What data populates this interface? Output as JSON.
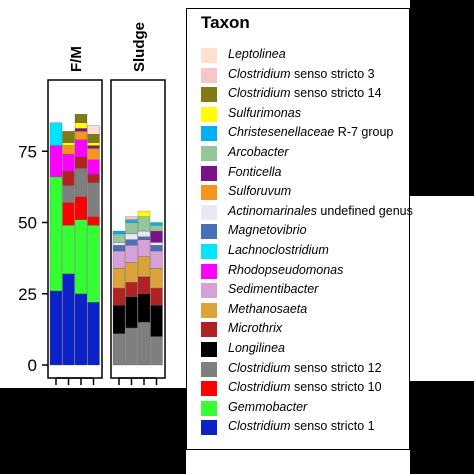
{
  "chart_data": {
    "type": "bar",
    "stacked": true,
    "panels": [
      {
        "title": "F/M",
        "n_bars": 4
      },
      {
        "title": "Sludge",
        "n_bars": 4
      }
    ],
    "ylim": [
      0,
      100
    ],
    "yticks": [
      "0",
      "25",
      "50",
      "75"
    ],
    "ytick_values": [
      0,
      25,
      50,
      75
    ],
    "xlabel": "",
    "ylabel": "",
    "legend_title": "Taxon",
    "legend_position": "right",
    "grid": false,
    "series": [
      {
        "name_italic": "Leptolinea",
        "name_rest": "",
        "color": "#fde0cf",
        "values": [
          0,
          0,
          0,
          3,
          0,
          0,
          0,
          0
        ]
      },
      {
        "name_italic": "Clostridium",
        "name_rest": " senso stricto 3",
        "color": "#f7c6c6",
        "values": [
          0,
          0,
          0,
          0,
          0,
          1,
          0,
          0
        ]
      },
      {
        "name_italic": "Clostridium",
        "name_rest": " senso stricto 14",
        "color": "#7f7a14",
        "values": [
          0,
          4,
          3,
          3,
          0,
          0,
          0,
          0
        ]
      },
      {
        "name_italic": "Sulfurimonas",
        "name_rest": "",
        "color": "#ffff00",
        "values": [
          0,
          1,
          2,
          1,
          0,
          0,
          2,
          0
        ]
      },
      {
        "name_italic": "Christesenellaceae",
        "name_rest": " R-7 group",
        "color": "#00b0f0",
        "values": [
          0,
          0,
          0,
          0,
          1,
          1,
          0,
          1
        ]
      },
      {
        "name_italic": "Arcobacter",
        "name_rest": "",
        "color": "#93c69b",
        "values": [
          0,
          0,
          0,
          0,
          3,
          4,
          5,
          2
        ]
      },
      {
        "name_italic": "Fonticella",
        "name_rest": "",
        "color": "#7a1187",
        "values": [
          0,
          0,
          1,
          1,
          0,
          0,
          0,
          4
        ]
      },
      {
        "name_italic": "Sulforuvum",
        "name_rest": "",
        "color": "#f7931e",
        "values": [
          0,
          3,
          3,
          4,
          0,
          0,
          0,
          0
        ]
      },
      {
        "name_italic": "Actinomarinales",
        "name_rest": " undefined genus",
        "color": "#e8e8f6",
        "values": [
          0,
          0,
          0,
          0,
          1,
          2,
          2,
          1
        ]
      },
      {
        "name_italic": "Magnetovibrio",
        "name_rest": "",
        "color": "#4a6fb5",
        "values": [
          0,
          0,
          0,
          0,
          2,
          2,
          1,
          2
        ]
      },
      {
        "name_italic": "Lachnoclostridium",
        "name_rest": "",
        "color": "#00e5ff",
        "values": [
          8,
          0,
          0,
          0,
          0,
          0,
          0,
          0
        ]
      },
      {
        "name_italic": "Rhodopseudomonas",
        "name_rest": "",
        "color": "#ff00ff",
        "values": [
          11,
          6,
          6,
          5,
          0,
          0,
          0,
          0
        ]
      },
      {
        "name_italic": "Sedimentibacter",
        "name_rest": "",
        "color": "#d8a0d8",
        "values": [
          0,
          0,
          0,
          0,
          6,
          6,
          6,
          6
        ]
      },
      {
        "name_italic": "Methanosaeta",
        "name_rest": "",
        "color": "#dba33a",
        "values": [
          0,
          0,
          0,
          0,
          7,
          7,
          7,
          7
        ]
      },
      {
        "name_italic": "Microthrix",
        "name_rest": "",
        "color": "#b22222",
        "values": [
          0,
          5,
          4,
          3,
          6,
          5,
          6,
          6
        ]
      },
      {
        "name_italic": "Longilinea",
        "name_rest": "",
        "color": "#000000",
        "values": [
          0,
          0,
          0,
          0,
          10,
          11,
          10,
          11
        ]
      },
      {
        "name_italic": "Clostridium",
        "name_rest": " senso stricto 12",
        "color": "#7f7f7f",
        "values": [
          0,
          6,
          10,
          12,
          11,
          13,
          15,
          10
        ]
      },
      {
        "name_italic": "Clostridium",
        "name_rest": " senso stricto 10",
        "color": "#ff0000",
        "values": [
          0,
          8,
          8,
          3,
          0,
          0,
          0,
          0
        ]
      },
      {
        "name_italic": "Gemmobacter",
        "name_rest": "",
        "color": "#33ff33",
        "values": [
          40,
          17,
          26,
          27,
          0,
          0,
          0,
          0
        ]
      },
      {
        "name_italic": "Clostridium",
        "name_rest": " senso stricto 1",
        "color": "#0a22c8",
        "values": [
          26,
          32,
          25,
          22,
          0,
          0,
          0,
          0
        ]
      }
    ]
  }
}
